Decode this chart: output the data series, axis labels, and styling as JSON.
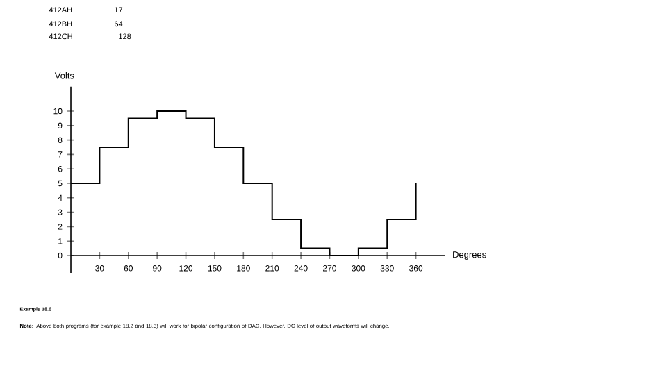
{
  "chart_data": {
    "type": "step",
    "xlabel": "Degrees",
    "ylabel": "Volts",
    "x": [
      0,
      30,
      60,
      90,
      120,
      150,
      180,
      210,
      240,
      270,
      300,
      330,
      360
    ],
    "values": [
      5,
      7.5,
      9.5,
      10,
      9.5,
      7.5,
      5,
      2.5,
      0.5,
      0,
      0.5,
      2.5,
      5
    ],
    "color": "#000000",
    "xlim": [
      0,
      390
    ],
    "ylim": [
      -1.2,
      11.7
    ],
    "xticks": [
      30,
      60,
      90,
      120,
      150,
      180,
      210,
      240,
      270,
      300,
      330,
      360
    ],
    "yticks": [
      0,
      1,
      2,
      3,
      4,
      5,
      6,
      7,
      8,
      9,
      10
    ],
    "annotations": [
      "412AH",
      "17",
      "412BH",
      "64",
      "412CH",
      "128",
      "**Example 18.6**",
      "**Note:** Above both programs (for example 18.2 and 18.3) will work for bipolar configuration of DAC. However, DC level of output waveforms will change."
    ]
  }
}
